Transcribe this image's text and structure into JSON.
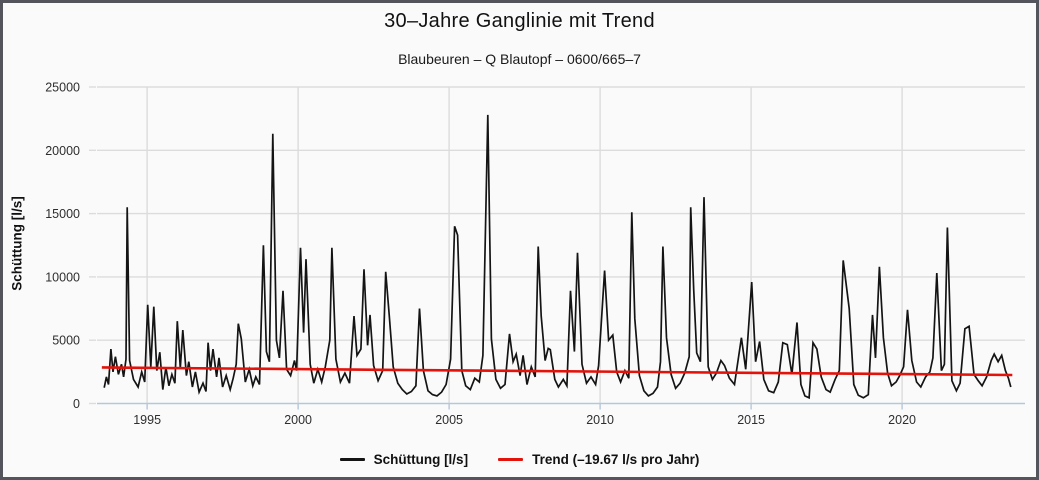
{
  "header": {
    "title": "30–Jahre Ganglinie mit Trend",
    "subtitle": "Blaubeuren – Q Blautopf – 0600/665–7"
  },
  "colors": {
    "background": "#fafafa",
    "frame_border": "#54555c",
    "grid": "#dcdcdc",
    "axis_line": "#b5c7da",
    "tick_text": "#2e2e2e",
    "series": "#141414",
    "trend": "#e3120b"
  },
  "chart_data": {
    "type": "line",
    "title": "30–Jahre Ganglinie mit Trend",
    "subtitle": "Blaubeuren – Q Blautopf – 0600/665–7",
    "xlabel": "",
    "ylabel": "Schüttung [l/s]",
    "xlim": [
      1993.34,
      2024.07
    ],
    "ylim": [
      0,
      25000
    ],
    "x_ticks": [
      1995,
      2000,
      2005,
      2010,
      2015,
      2020
    ],
    "y_ticks": [
      0,
      5000,
      10000,
      15000,
      20000,
      25000
    ],
    "grid": true,
    "legend_position": "bottom",
    "series": [
      {
        "name": "Schüttung [l/s]",
        "color": "#141414",
        "points": [
          [
            1993.58,
            1250
          ],
          [
            1993.65,
            2100
          ],
          [
            1993.72,
            1500
          ],
          [
            1993.8,
            4300
          ],
          [
            1993.87,
            2500
          ],
          [
            1993.95,
            3700
          ],
          [
            1994.05,
            2300
          ],
          [
            1994.15,
            3100
          ],
          [
            1994.22,
            2100
          ],
          [
            1994.3,
            3500
          ],
          [
            1994.34,
            15500
          ],
          [
            1994.42,
            3400
          ],
          [
            1994.55,
            1900
          ],
          [
            1994.7,
            1300
          ],
          [
            1994.82,
            2500
          ],
          [
            1994.92,
            1700
          ],
          [
            1995.02,
            7800
          ],
          [
            1995.12,
            2900
          ],
          [
            1995.22,
            7650
          ],
          [
            1995.32,
            2600
          ],
          [
            1995.42,
            4050
          ],
          [
            1995.52,
            1100
          ],
          [
            1995.62,
            2850
          ],
          [
            1995.72,
            1400
          ],
          [
            1995.82,
            2300
          ],
          [
            1995.92,
            1600
          ],
          [
            1996.0,
            6500
          ],
          [
            1996.1,
            2800
          ],
          [
            1996.18,
            5800
          ],
          [
            1996.3,
            2200
          ],
          [
            1996.38,
            3300
          ],
          [
            1996.5,
            1300
          ],
          [
            1996.6,
            2500
          ],
          [
            1996.72,
            900
          ],
          [
            1996.85,
            1600
          ],
          [
            1996.95,
            950
          ],
          [
            1997.02,
            4800
          ],
          [
            1997.1,
            2600
          ],
          [
            1997.18,
            4300
          ],
          [
            1997.3,
            2100
          ],
          [
            1997.38,
            3600
          ],
          [
            1997.5,
            1300
          ],
          [
            1997.62,
            2200
          ],
          [
            1997.75,
            1100
          ],
          [
            1997.85,
            2000
          ],
          [
            1997.95,
            3100
          ],
          [
            1998.02,
            6300
          ],
          [
            1998.12,
            5100
          ],
          [
            1998.25,
            1700
          ],
          [
            1998.38,
            2700
          ],
          [
            1998.5,
            1400
          ],
          [
            1998.6,
            2100
          ],
          [
            1998.72,
            1500
          ],
          [
            1998.85,
            12500
          ],
          [
            1998.95,
            4100
          ],
          [
            1999.05,
            3300
          ],
          [
            1999.16,
            21300
          ],
          [
            1999.28,
            5000
          ],
          [
            1999.38,
            3600
          ],
          [
            1999.5,
            8900
          ],
          [
            1999.62,
            2700
          ],
          [
            1999.75,
            2200
          ],
          [
            1999.88,
            3400
          ],
          [
            1999.95,
            2600
          ],
          [
            2000.08,
            12300
          ],
          [
            2000.18,
            5600
          ],
          [
            2000.26,
            11400
          ],
          [
            2000.4,
            3100
          ],
          [
            2000.52,
            1600
          ],
          [
            2000.65,
            2700
          ],
          [
            2000.78,
            1700
          ],
          [
            2000.9,
            2900
          ],
          [
            2001.05,
            5000
          ],
          [
            2001.12,
            12300
          ],
          [
            2001.25,
            3500
          ],
          [
            2001.4,
            1700
          ],
          [
            2001.55,
            2400
          ],
          [
            2001.7,
            1600
          ],
          [
            2001.85,
            6900
          ],
          [
            2001.95,
            3800
          ],
          [
            2002.08,
            4300
          ],
          [
            2002.18,
            10600
          ],
          [
            2002.3,
            4600
          ],
          [
            2002.38,
            7000
          ],
          [
            2002.5,
            3000
          ],
          [
            2002.65,
            1800
          ],
          [
            2002.8,
            2600
          ],
          [
            2002.9,
            10400
          ],
          [
            2003.02,
            6900
          ],
          [
            2003.15,
            2900
          ],
          [
            2003.3,
            1600
          ],
          [
            2003.45,
            1100
          ],
          [
            2003.6,
            750
          ],
          [
            2003.75,
            950
          ],
          [
            2003.9,
            1400
          ],
          [
            2004.02,
            7500
          ],
          [
            2004.15,
            2600
          ],
          [
            2004.3,
            1000
          ],
          [
            2004.45,
            700
          ],
          [
            2004.6,
            600
          ],
          [
            2004.75,
            900
          ],
          [
            2004.9,
            1500
          ],
          [
            2005.05,
            3500
          ],
          [
            2005.18,
            14000
          ],
          [
            2005.28,
            13300
          ],
          [
            2005.42,
            2600
          ],
          [
            2005.55,
            1400
          ],
          [
            2005.7,
            1100
          ],
          [
            2005.85,
            2000
          ],
          [
            2006.0,
            1700
          ],
          [
            2006.12,
            3800
          ],
          [
            2006.28,
            22800
          ],
          [
            2006.4,
            5100
          ],
          [
            2006.55,
            1900
          ],
          [
            2006.7,
            1200
          ],
          [
            2006.85,
            1500
          ],
          [
            2007.0,
            5500
          ],
          [
            2007.12,
            3300
          ],
          [
            2007.22,
            3900
          ],
          [
            2007.35,
            2200
          ],
          [
            2007.45,
            3800
          ],
          [
            2007.58,
            1500
          ],
          [
            2007.72,
            2900
          ],
          [
            2007.85,
            2100
          ],
          [
            2007.95,
            12400
          ],
          [
            2008.05,
            6900
          ],
          [
            2008.18,
            3400
          ],
          [
            2008.28,
            4350
          ],
          [
            2008.35,
            4250
          ],
          [
            2008.5,
            1900
          ],
          [
            2008.62,
            1300
          ],
          [
            2008.78,
            1900
          ],
          [
            2008.9,
            1400
          ],
          [
            2009.02,
            8900
          ],
          [
            2009.15,
            4100
          ],
          [
            2009.25,
            11900
          ],
          [
            2009.4,
            3100
          ],
          [
            2009.55,
            1600
          ],
          [
            2009.7,
            2100
          ],
          [
            2009.85,
            1500
          ],
          [
            2009.95,
            3000
          ],
          [
            2010.15,
            10500
          ],
          [
            2010.28,
            5000
          ],
          [
            2010.42,
            5400
          ],
          [
            2010.55,
            2500
          ],
          [
            2010.68,
            1700
          ],
          [
            2010.82,
            2600
          ],
          [
            2010.95,
            2000
          ],
          [
            2011.05,
            15100
          ],
          [
            2011.15,
            6700
          ],
          [
            2011.3,
            2200
          ],
          [
            2011.45,
            1000
          ],
          [
            2011.6,
            600
          ],
          [
            2011.75,
            800
          ],
          [
            2011.9,
            1300
          ],
          [
            2012.0,
            3300
          ],
          [
            2012.08,
            12400
          ],
          [
            2012.2,
            5200
          ],
          [
            2012.35,
            2300
          ],
          [
            2012.5,
            1200
          ],
          [
            2012.65,
            1600
          ],
          [
            2012.8,
            2400
          ],
          [
            2012.95,
            3700
          ],
          [
            2013.0,
            15500
          ],
          [
            2013.1,
            9000
          ],
          [
            2013.2,
            4000
          ],
          [
            2013.32,
            3300
          ],
          [
            2013.44,
            16300
          ],
          [
            2013.58,
            2900
          ],
          [
            2013.72,
            1900
          ],
          [
            2013.85,
            2400
          ],
          [
            2014.0,
            3400
          ],
          [
            2014.12,
            3000
          ],
          [
            2014.28,
            2000
          ],
          [
            2014.45,
            1500
          ],
          [
            2014.68,
            5200
          ],
          [
            2014.82,
            2700
          ],
          [
            2015.02,
            9600
          ],
          [
            2015.15,
            3300
          ],
          [
            2015.28,
            4900
          ],
          [
            2015.42,
            1900
          ],
          [
            2015.58,
            1000
          ],
          [
            2015.75,
            850
          ],
          [
            2015.9,
            1700
          ],
          [
            2016.05,
            4800
          ],
          [
            2016.2,
            4650
          ],
          [
            2016.35,
            2300
          ],
          [
            2016.52,
            6400
          ],
          [
            2016.65,
            1500
          ],
          [
            2016.78,
            600
          ],
          [
            2016.92,
            450
          ],
          [
            2017.05,
            4800
          ],
          [
            2017.18,
            4300
          ],
          [
            2017.32,
            2100
          ],
          [
            2017.48,
            1100
          ],
          [
            2017.62,
            900
          ],
          [
            2017.78,
            1900
          ],
          [
            2017.92,
            2600
          ],
          [
            2018.05,
            11300
          ],
          [
            2018.15,
            9400
          ],
          [
            2018.25,
            7500
          ],
          [
            2018.4,
            1500
          ],
          [
            2018.55,
            650
          ],
          [
            2018.72,
            450
          ],
          [
            2018.88,
            700
          ],
          [
            2019.02,
            7000
          ],
          [
            2019.12,
            3600
          ],
          [
            2019.25,
            10800
          ],
          [
            2019.38,
            5200
          ],
          [
            2019.52,
            2400
          ],
          [
            2019.65,
            1400
          ],
          [
            2019.8,
            1700
          ],
          [
            2019.92,
            2200
          ],
          [
            2020.05,
            2900
          ],
          [
            2020.18,
            7400
          ],
          [
            2020.32,
            3400
          ],
          [
            2020.48,
            1700
          ],
          [
            2020.62,
            1300
          ],
          [
            2020.78,
            2100
          ],
          [
            2020.92,
            2500
          ],
          [
            2021.02,
            3600
          ],
          [
            2021.15,
            10300
          ],
          [
            2021.3,
            2600
          ],
          [
            2021.4,
            3100
          ],
          [
            2021.5,
            13900
          ],
          [
            2021.65,
            1800
          ],
          [
            2021.8,
            1000
          ],
          [
            2021.92,
            1600
          ],
          [
            2022.08,
            5900
          ],
          [
            2022.22,
            6100
          ],
          [
            2022.38,
            2300
          ],
          [
            2022.52,
            1800
          ],
          [
            2022.65,
            1400
          ],
          [
            2022.8,
            2100
          ],
          [
            2022.95,
            3400
          ],
          [
            2023.05,
            3900
          ],
          [
            2023.18,
            3300
          ],
          [
            2023.3,
            3800
          ],
          [
            2023.42,
            2600
          ],
          [
            2023.52,
            2000
          ],
          [
            2023.6,
            1300
          ]
        ]
      },
      {
        "name": "Trend (–19.67 l/s pro Jahr)",
        "color": "#e3120b",
        "slope_l_s_per_year": -19.67,
        "points": [
          [
            1993.5,
            2845
          ],
          [
            2023.65,
            2252
          ]
        ]
      }
    ]
  }
}
